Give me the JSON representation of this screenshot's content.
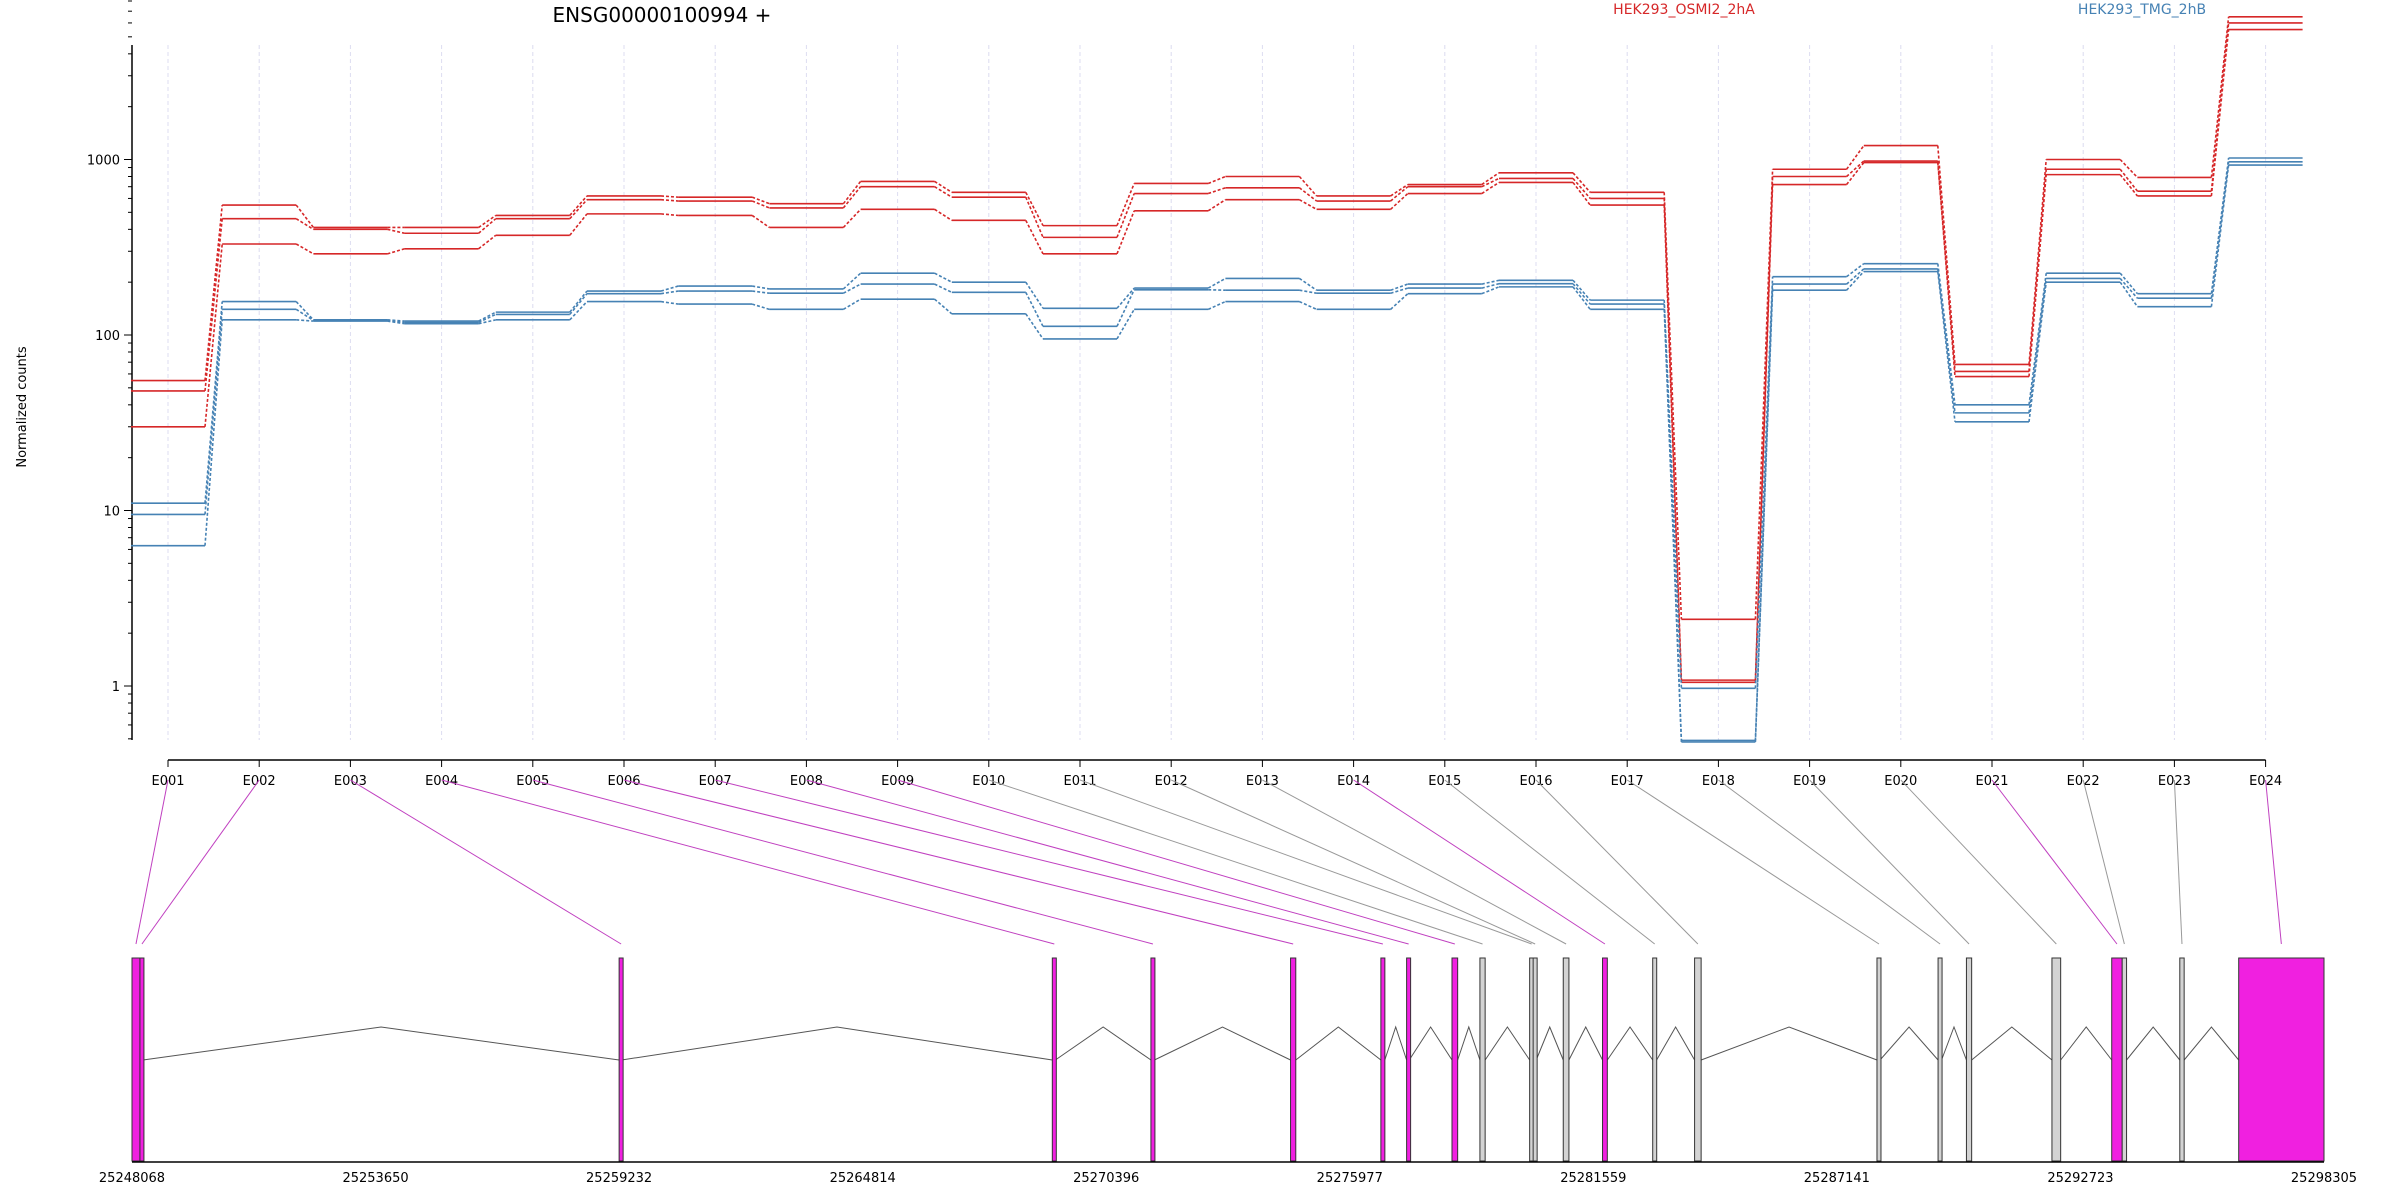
{
  "chart_data": {
    "type": "line",
    "title": "ENSG00000100994 +",
    "ylabel": "Normalized counts",
    "y_scale": "log",
    "ylim": [
      0.5,
      10000
    ],
    "y_ticks": [
      1,
      10,
      100,
      1000
    ],
    "y_tick_labels": [
      "1",
      "10",
      "100",
      "1000"
    ],
    "grid": "vertical dashed at exons",
    "legend_placement": "top-right",
    "categories": [
      "E001",
      "E002",
      "E003",
      "E004",
      "E005",
      "E006",
      "E007",
      "E008",
      "E009",
      "E010",
      "E011",
      "E012",
      "E013",
      "E014",
      "E015",
      "E016",
      "E017",
      "E018",
      "E019",
      "E020",
      "E021",
      "E022",
      "E023",
      "E024"
    ],
    "series": [
      {
        "group": "HEK293_OSMI2_2hA",
        "color": "#d62728",
        "values": [
          55,
          550,
          410,
          410,
          480,
          620,
          610,
          560,
          750,
          650,
          420,
          730,
          800,
          620,
          720,
          840,
          650,
          2.4,
          880,
          1200,
          68,
          1000,
          790,
          6500
        ]
      },
      {
        "group": "HEK293_OSMI2_2hA",
        "color": "#d62728",
        "values": [
          48,
          460,
          400,
          380,
          460,
          590,
          580,
          530,
          700,
          610,
          360,
          640,
          690,
          580,
          700,
          780,
          600,
          1.08,
          800,
          980,
          62,
          880,
          660,
          6000
        ]
      },
      {
        "group": "HEK293_OSMI2_2hA",
        "color": "#d62728",
        "values": [
          30,
          330,
          290,
          310,
          370,
          490,
          480,
          410,
          520,
          450,
          290,
          510,
          590,
          520,
          640,
          740,
          550,
          1.05,
          720,
          960,
          58,
          820,
          620,
          5500
        ]
      },
      {
        "group": "HEK293_TMG_2hB",
        "color": "#4682b4",
        "values": [
          11,
          155,
          122,
          120,
          135,
          178,
          190,
          183,
          225,
          200,
          142,
          185,
          210,
          180,
          195,
          205,
          158,
          0.97,
          215,
          255,
          40,
          225,
          172,
          1020
        ]
      },
      {
        "group": "HEK293_TMG_2hB",
        "color": "#4682b4",
        "values": [
          9.5,
          140,
          121,
          118,
          131,
          172,
          178,
          173,
          195,
          175,
          112,
          181,
          180,
          173,
          185,
          196,
          150,
          0.49,
          195,
          238,
          36,
          210,
          162,
          970
        ]
      },
      {
        "group": "HEK293_TMG_2hB",
        "color": "#4682b4",
        "values": [
          6.3,
          122,
          120,
          116,
          122,
          155,
          150,
          140,
          160,
          132,
          95,
          140,
          155,
          140,
          172,
          188,
          140,
          0.48,
          180,
          230,
          32,
          200,
          145,
          930
        ]
      }
    ],
    "legend": [
      {
        "label": "HEK293_OSMI2_2hA",
        "color": "#d62728"
      },
      {
        "label": "HEK293_TMG_2hB",
        "color": "#4682b4"
      }
    ],
    "genome_axis": {
      "start": 25248068,
      "end": 25298305,
      "tick_values": [
        25248068,
        25253650,
        25259232,
        25264814,
        25270396,
        25275977,
        25281559,
        25287141,
        25292723,
        25298305
      ],
      "tick_labels": [
        "25248068",
        "25253650",
        "25259232",
        "25264814",
        "25270396",
        "25275977",
        "25281559",
        "25287141",
        "25292723",
        "25298305"
      ]
    },
    "exon_color_highlight": "#f020e0",
    "exon_color_normal": "#d3d3d3",
    "exons": [
      {
        "id": "E001",
        "start": 25248068,
        "end": 25248250,
        "highlight": true
      },
      {
        "id": "E002",
        "start": 25248250,
        "end": 25248320,
        "highlight": true
      },
      {
        "id": "E003",
        "start": 25259232,
        "end": 25259290,
        "highlight": true
      },
      {
        "id": "E004",
        "start": 25269160,
        "end": 25269230,
        "highlight": true
      },
      {
        "id": "E005",
        "start": 25271420,
        "end": 25271500,
        "highlight": true
      },
      {
        "id": "E006",
        "start": 25274620,
        "end": 25274740,
        "highlight": true
      },
      {
        "id": "E007",
        "start": 25276690,
        "end": 25276780,
        "highlight": true
      },
      {
        "id": "E008",
        "start": 25277280,
        "end": 25277340,
        "highlight": true
      },
      {
        "id": "E009",
        "start": 25278320,
        "end": 25278450,
        "highlight": true
      },
      {
        "id": "E010",
        "start": 25278960,
        "end": 25279080,
        "highlight": false
      },
      {
        "id": "E011",
        "start": 25280100,
        "end": 25280180,
        "highlight": false
      },
      {
        "id": "E012",
        "start": 25280180,
        "end": 25280250,
        "highlight": false
      },
      {
        "id": "E013",
        "start": 25280870,
        "end": 25281000,
        "highlight": false
      },
      {
        "id": "E014",
        "start": 25281770,
        "end": 25281880,
        "highlight": true
      },
      {
        "id": "E015",
        "start": 25282920,
        "end": 25283010,
        "highlight": false
      },
      {
        "id": "E016",
        "start": 25283880,
        "end": 25284030,
        "highlight": false
      },
      {
        "id": "E017",
        "start": 25288060,
        "end": 25288130,
        "highlight": false
      },
      {
        "id": "E018",
        "start": 25289460,
        "end": 25289540,
        "highlight": false
      },
      {
        "id": "E019",
        "start": 25290110,
        "end": 25290230,
        "highlight": false
      },
      {
        "id": "E020",
        "start": 25292070,
        "end": 25292270,
        "highlight": false
      },
      {
        "id": "E021",
        "start": 25293440,
        "end": 25293680,
        "highlight": true
      },
      {
        "id": "E022",
        "start": 25293680,
        "end": 25293780,
        "highlight": false
      },
      {
        "id": "E023",
        "start": 25295000,
        "end": 25295100,
        "highlight": false
      },
      {
        "id": "E024",
        "start": 25296350,
        "end": 25298305,
        "highlight": true
      }
    ]
  }
}
